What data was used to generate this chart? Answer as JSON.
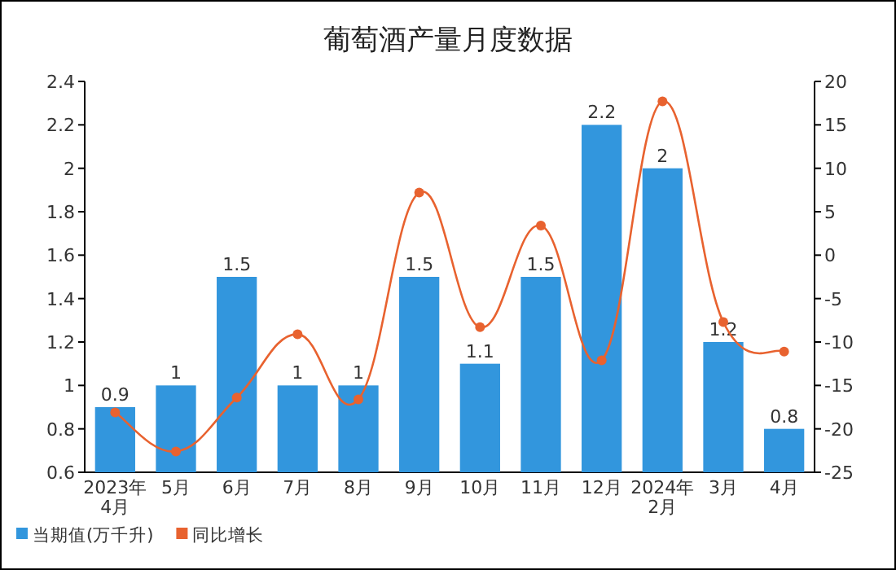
{
  "chart_data": {
    "type": "bar",
    "title": "葡萄酒产量月度数据",
    "categories": [
      "2023年\n4月",
      "5月",
      "6月",
      "7月",
      "8月",
      "9月",
      "10月",
      "11月",
      "12月",
      "2024年\n2月",
      "3月",
      "4月"
    ],
    "series": [
      {
        "name": "当期值(万千升)",
        "color": "#3296dd",
        "values": [
          0.9,
          1,
          1.5,
          1,
          1,
          1.5,
          1.1,
          1.5,
          2.2,
          2,
          1.2,
          0.8
        ],
        "value_labels": [
          "0.9",
          "1",
          "1.5",
          "1",
          "1",
          "1.5",
          "1.1",
          "1.5",
          "2.2",
          "2",
          "1.2",
          "0.8"
        ]
      },
      {
        "name": "同比增长",
        "type": "line",
        "axis": "y2",
        "color": "#e8622f",
        "marker": "circle",
        "values": [
          -18.1,
          -22.6,
          -16.4,
          -9.1,
          -16.6,
          7.2,
          -8.3,
          3.4,
          -12.1,
          17.7,
          -7.7,
          -11.1
        ]
      }
    ],
    "ylim": [
      0.6,
      2.4
    ],
    "yticks": [
      {
        "value": 0.6,
        "label": "0.6"
      },
      {
        "value": 0.8,
        "label": "0.8"
      },
      {
        "value": 1,
        "label": "1"
      },
      {
        "value": 1.2,
        "label": "1.2"
      },
      {
        "value": 1.4,
        "label": "1.4"
      },
      {
        "value": 1.6,
        "label": "1.6"
      },
      {
        "value": 1.8,
        "label": "1.8"
      },
      {
        "value": 2,
        "label": "2"
      },
      {
        "value": 2.2,
        "label": "2.2"
      },
      {
        "value": 2.4,
        "label": "2.4"
      }
    ],
    "y2lim": [
      -25,
      20
    ],
    "y2ticks": [
      -25,
      -20,
      -15,
      -10,
      -5,
      0,
      5,
      10,
      15,
      20
    ],
    "legend": "bottom left",
    "grid": false
  }
}
